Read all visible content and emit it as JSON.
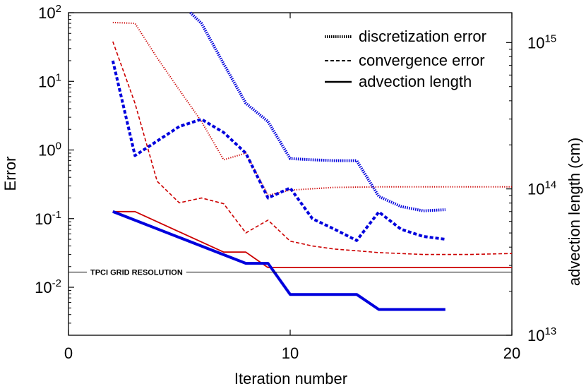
{
  "chart_data": {
    "type": "line",
    "x_axis": {
      "label": "Iteration number",
      "range": [
        0,
        20
      ],
      "ticks": [
        0,
        10,
        20
      ]
    },
    "y_left": {
      "label": "Error",
      "scale": "log",
      "range": [
        0.002,
        100
      ],
      "ticks": [
        {
          "value": 100,
          "mantissa": "10",
          "exp": "2"
        },
        {
          "value": 10,
          "mantissa": "10",
          "exp": "1"
        },
        {
          "value": 1,
          "mantissa": "10",
          "exp": "0"
        },
        {
          "value": 0.1,
          "mantissa": "10",
          "exp": "-1"
        },
        {
          "value": 0.01,
          "mantissa": "10",
          "exp": "-2"
        }
      ]
    },
    "y_right": {
      "label": "advection length (cm)",
      "scale": "log",
      "range": [
        10000000000000.0,
        1600000000000000.0
      ],
      "ticks": [
        {
          "value": 1000000000000000.0,
          "mantissa": "10",
          "exp": "15"
        },
        {
          "value": 100000000000000.0,
          "mantissa": "10",
          "exp": "14"
        },
        {
          "value": 10000000000000.0,
          "mantissa": "10",
          "exp": "13"
        }
      ]
    },
    "grid": false,
    "legend": {
      "placement": "top-right",
      "entries": [
        {
          "label": "discretization error",
          "style": "dotted"
        },
        {
          "label": "convergence error",
          "style": "dashed"
        },
        {
          "label": "advection length",
          "style": "solid"
        }
      ]
    },
    "reference_line": {
      "label": "TPCI GRID RESOLUTION",
      "axis": "right",
      "value": 27000000000000.0
    },
    "series": [
      {
        "color": "#cc0000",
        "style": "dotted",
        "axis": "left",
        "width": 2,
        "x": [
          2,
          3,
          4,
          5,
          6,
          7,
          8,
          9,
          10,
          12,
          14,
          16,
          18,
          20
        ],
        "y": [
          72,
          70,
          22,
          7.5,
          2.6,
          0.72,
          0.9,
          0.22,
          0.26,
          0.285,
          0.29,
          0.29,
          0.29,
          0.29
        ]
      },
      {
        "color": "#cc0000",
        "style": "dashed",
        "axis": "left",
        "width": 1.6,
        "x": [
          2,
          3,
          4,
          5,
          6,
          7,
          8,
          9,
          10,
          11,
          12,
          13,
          14,
          15,
          16,
          18,
          20
        ],
        "y": [
          38,
          4.8,
          0.35,
          0.17,
          0.2,
          0.165,
          0.062,
          0.095,
          0.047,
          0.04,
          0.036,
          0.034,
          0.032,
          0.031,
          0.03,
          0.03,
          0.031
        ]
      },
      {
        "color": "#0000dd",
        "style": "dotted",
        "axis": "left",
        "width": 4,
        "x": [
          5.5,
          6,
          7,
          8,
          9,
          10,
          11,
          12,
          13,
          14,
          15,
          16,
          17
        ],
        "y": [
          100,
          70,
          18,
          4.8,
          2.6,
          0.75,
          0.72,
          0.7,
          0.7,
          0.21,
          0.15,
          0.13,
          0.135
        ]
      },
      {
        "color": "#0000dd",
        "style": "dashed",
        "axis": "left",
        "width": 4,
        "x": [
          2,
          3,
          4,
          5,
          6,
          7,
          8,
          9,
          10,
          11,
          12,
          13,
          14,
          15,
          16,
          17
        ],
        "y": [
          20,
          0.83,
          1.35,
          2.2,
          2.8,
          1.8,
          0.9,
          0.2,
          0.28,
          0.1,
          0.07,
          0.048,
          0.125,
          0.07,
          0.055,
          0.05
        ]
      },
      {
        "color": "#cc0000",
        "style": "solid",
        "axis": "right",
        "width": 1.8,
        "x": [
          2,
          3,
          7,
          8,
          9,
          20
        ],
        "y": [
          70000000000000.0,
          70000000000000.0,
          37000000000000.0,
          37000000000000.0,
          29000000000000.0,
          29000000000000.0
        ]
      },
      {
        "color": "#0000dd",
        "style": "solid",
        "axis": "right",
        "width": 4,
        "x": [
          2,
          8,
          9,
          10,
          13,
          14,
          17
        ],
        "y": [
          70000000000000.0,
          31000000000000.0,
          31000000000000.0,
          19000000000000.0,
          19000000000000.0,
          15000000000000.0,
          15000000000000.0
        ]
      }
    ]
  }
}
